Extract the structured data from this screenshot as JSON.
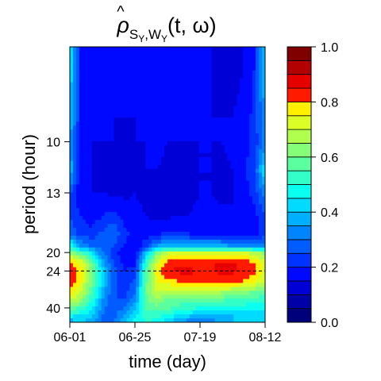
{
  "chart_data": {
    "type": "heatmap",
    "title": {
      "base": "ρ",
      "hat": "^",
      "sub1": "S",
      "sub1_sub": "Y",
      "sep": ",",
      "sub2": "W",
      "sub2_sub": "Y",
      "args": "(t, ω)"
    },
    "xlabel": "time (day)",
    "ylabel": "period (hour)",
    "x_ticks": [
      "06-01",
      "06-25",
      "07-19",
      "08-12"
    ],
    "x_tick_days": [
      0,
      24,
      48,
      72
    ],
    "xlim_days": [
      0,
      72
    ],
    "y_ticks": [
      10,
      13,
      20,
      24,
      40
    ],
    "y_scale": "reciprocal (frequency)",
    "ylim_hours": [
      7,
      54
    ],
    "reference_line_hours": 24,
    "colorbar": {
      "range": [
        0,
        1
      ],
      "ticks": [
        "0.0",
        "0.2",
        "0.4",
        "0.6",
        "0.8",
        "1.0"
      ],
      "levels": 20,
      "colors": [
        "#00007A",
        "#0000A8",
        "#0000D6",
        "#0008FF",
        "#0033FF",
        "#005CFF",
        "#0085FF",
        "#00B0FF",
        "#00DBFF",
        "#0AFFF0",
        "#33FFC8",
        "#5CFFA0",
        "#85FF78",
        "#B0FF4F",
        "#DBFF26",
        "#FFF000",
        "#FFC400",
        "#FF9900",
        "#FF6E00",
        "#FF4500"
      ],
      "top_colors": [
        "#FF1A00",
        "#E60000",
        "#B30000",
        "#800000"
      ]
    },
    "z_grid": {
      "x_days": [
        0,
        4,
        8,
        12,
        16,
        20,
        24,
        28,
        32,
        36,
        40,
        44,
        48,
        52,
        56,
        60,
        64,
        68,
        72
      ],
      "y_hours": [
        7.5,
        9,
        10,
        11.5,
        13,
        15,
        17,
        19,
        20,
        22,
        24,
        27,
        31,
        36,
        40,
        47,
        54
      ],
      "values": [
        [
          0.45,
          0.18,
          0.16,
          0.16,
          0.15,
          0.15,
          0.16,
          0.15,
          0.15,
          0.16,
          0.18,
          0.2,
          0.15,
          0.15,
          0.14,
          0.14,
          0.15,
          0.2,
          0.4
        ],
        [
          0.4,
          0.2,
          0.16,
          0.16,
          0.15,
          0.15,
          0.15,
          0.15,
          0.15,
          0.15,
          0.16,
          0.2,
          0.16,
          0.15,
          0.15,
          0.15,
          0.16,
          0.22,
          0.35
        ],
        [
          0.35,
          0.18,
          0.15,
          0.15,
          0.15,
          0.14,
          0.15,
          0.15,
          0.16,
          0.15,
          0.15,
          0.15,
          0.15,
          0.15,
          0.15,
          0.16,
          0.17,
          0.22,
          0.32
        ],
        [
          0.4,
          0.16,
          0.15,
          0.14,
          0.14,
          0.14,
          0.14,
          0.15,
          0.15,
          0.14,
          0.14,
          0.14,
          0.15,
          0.15,
          0.14,
          0.15,
          0.18,
          0.25,
          0.45
        ],
        [
          0.25,
          0.16,
          0.15,
          0.15,
          0.14,
          0.14,
          0.15,
          0.14,
          0.13,
          0.13,
          0.14,
          0.14,
          0.15,
          0.15,
          0.14,
          0.15,
          0.17,
          0.22,
          0.32
        ],
        [
          0.24,
          0.2,
          0.17,
          0.2,
          0.22,
          0.18,
          0.16,
          0.15,
          0.14,
          0.14,
          0.15,
          0.15,
          0.16,
          0.16,
          0.16,
          0.15,
          0.16,
          0.18,
          0.24
        ],
        [
          0.3,
          0.22,
          0.22,
          0.26,
          0.3,
          0.22,
          0.18,
          0.17,
          0.18,
          0.2,
          0.2,
          0.19,
          0.18,
          0.18,
          0.18,
          0.18,
          0.17,
          0.18,
          0.22
        ],
        [
          0.5,
          0.36,
          0.3,
          0.28,
          0.25,
          0.2,
          0.16,
          0.24,
          0.36,
          0.4,
          0.4,
          0.38,
          0.38,
          0.38,
          0.38,
          0.36,
          0.35,
          0.34,
          0.34
        ],
        [
          0.62,
          0.55,
          0.45,
          0.3,
          0.22,
          0.16,
          0.15,
          0.4,
          0.6,
          0.7,
          0.72,
          0.72,
          0.7,
          0.7,
          0.72,
          0.72,
          0.7,
          0.68,
          0.62
        ],
        [
          0.82,
          0.74,
          0.6,
          0.38,
          0.25,
          0.18,
          0.18,
          0.5,
          0.72,
          0.82,
          0.84,
          0.84,
          0.82,
          0.84,
          0.86,
          0.86,
          0.84,
          0.8,
          0.72
        ],
        [
          0.86,
          0.78,
          0.62,
          0.42,
          0.28,
          0.2,
          0.22,
          0.56,
          0.76,
          0.85,
          0.86,
          0.86,
          0.84,
          0.84,
          0.86,
          0.86,
          0.84,
          0.82,
          0.74
        ],
        [
          0.84,
          0.76,
          0.6,
          0.42,
          0.28,
          0.2,
          0.26,
          0.58,
          0.74,
          0.78,
          0.8,
          0.82,
          0.84,
          0.84,
          0.84,
          0.82,
          0.8,
          0.76,
          0.7
        ],
        [
          0.78,
          0.7,
          0.56,
          0.38,
          0.26,
          0.22,
          0.3,
          0.6,
          0.7,
          0.68,
          0.66,
          0.66,
          0.68,
          0.66,
          0.66,
          0.64,
          0.62,
          0.6,
          0.58
        ],
        [
          0.7,
          0.62,
          0.5,
          0.34,
          0.26,
          0.26,
          0.34,
          0.58,
          0.62,
          0.58,
          0.56,
          0.54,
          0.54,
          0.54,
          0.54,
          0.52,
          0.52,
          0.5,
          0.5
        ],
        [
          0.6,
          0.54,
          0.46,
          0.32,
          0.26,
          0.3,
          0.4,
          0.56,
          0.58,
          0.56,
          0.54,
          0.52,
          0.5,
          0.5,
          0.5,
          0.48,
          0.48,
          0.46,
          0.46
        ],
        [
          0.46,
          0.44,
          0.4,
          0.3,
          0.28,
          0.36,
          0.44,
          0.52,
          0.52,
          0.48,
          0.44,
          0.4,
          0.38,
          0.38,
          0.4,
          0.4,
          0.42,
          0.42,
          0.44
        ],
        [
          0.36,
          0.4,
          0.38,
          0.3,
          0.3,
          0.4,
          0.48,
          0.5,
          0.48,
          0.4,
          0.34,
          0.3,
          0.3,
          0.32,
          0.36,
          0.4,
          0.42,
          0.42,
          0.44
        ]
      ]
    }
  }
}
